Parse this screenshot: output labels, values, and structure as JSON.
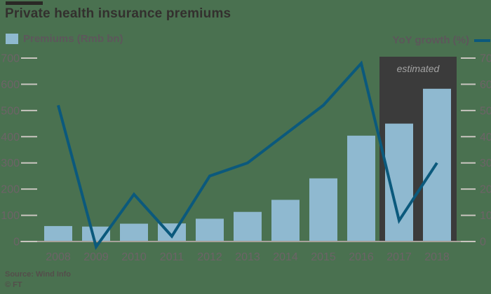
{
  "header": {
    "title": "Private health insurance premiums"
  },
  "legend": {
    "bars_label": "Premiums (Rmb bn)",
    "line_label": "YoY growth (%)"
  },
  "annotation": {
    "estimated_label": "estimated"
  },
  "footer": {
    "source": "Source: Wind Info",
    "copyright": "© FT"
  },
  "colors": {
    "background": "#4a7150",
    "bar": "#8fb9d0",
    "line": "#0b597c",
    "estimated_box": "#3b3b3b",
    "estimated_text": "#a3a3a3",
    "title_text": "#33302e",
    "axis_text": "#6d6367",
    "legend_text": "#5d575b",
    "baseline": "#a8a29a",
    "tick": "#c9c5bf",
    "source_text": "#544e4b",
    "brand_bar": "#2a2825"
  },
  "chart_data": {
    "type": "bar",
    "title": "Private health insurance premiums",
    "categories": [
      "2008",
      "2009",
      "2010",
      "2011",
      "2012",
      "2013",
      "2014",
      "2015",
      "2016",
      "2017",
      "2018"
    ],
    "series": [
      {
        "name": "Premiums (Rmb bn)",
        "type": "bar",
        "axis": "left",
        "values": [
          59,
          57,
          68,
          69,
          87,
          113,
          159,
          241,
          404,
          450,
          583
        ]
      },
      {
        "name": "YoY growth (%)",
        "type": "line",
        "axis": "right",
        "values": [
          52,
          -2,
          18,
          2,
          25,
          30,
          41,
          52,
          68,
          8,
          30
        ]
      }
    ],
    "left_axis": {
      "label": "Premiums (Rmb bn)",
      "ticks": [
        0,
        100,
        200,
        300,
        400,
        500,
        600,
        700
      ],
      "range": [
        0,
        700
      ]
    },
    "right_axis": {
      "label": "YoY growth (%)",
      "ticks": [
        0,
        10,
        20,
        30,
        40,
        50,
        60,
        70
      ],
      "range": [
        0,
        70
      ]
    },
    "estimated_span": {
      "from": "2017",
      "to": "2018",
      "label": "estimated"
    },
    "grid": false,
    "legend_position": "top",
    "xlabel": "",
    "ylabel": ""
  }
}
